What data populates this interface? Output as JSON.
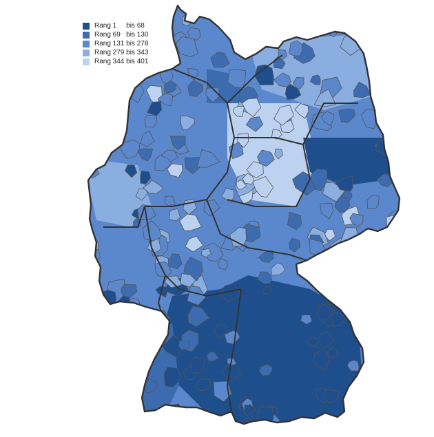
{
  "legend": {
    "items": [
      {
        "label": "Rang 1     bis 68",
        "color": "#1f4e8c"
      },
      {
        "label": "Rang 69   bis 130",
        "color": "#3d6bb0"
      },
      {
        "label": "Rang 131 bis 278",
        "color": "#5b87cc"
      },
      {
        "label": "Rang 279 bis 343",
        "color": "#8aaee0"
      },
      {
        "label": "Rang 344 bis 401",
        "color": "#bcd2f0"
      }
    ]
  },
  "colors": {
    "border": "#333333",
    "district_line": "#555555",
    "background": "#ffffff"
  }
}
